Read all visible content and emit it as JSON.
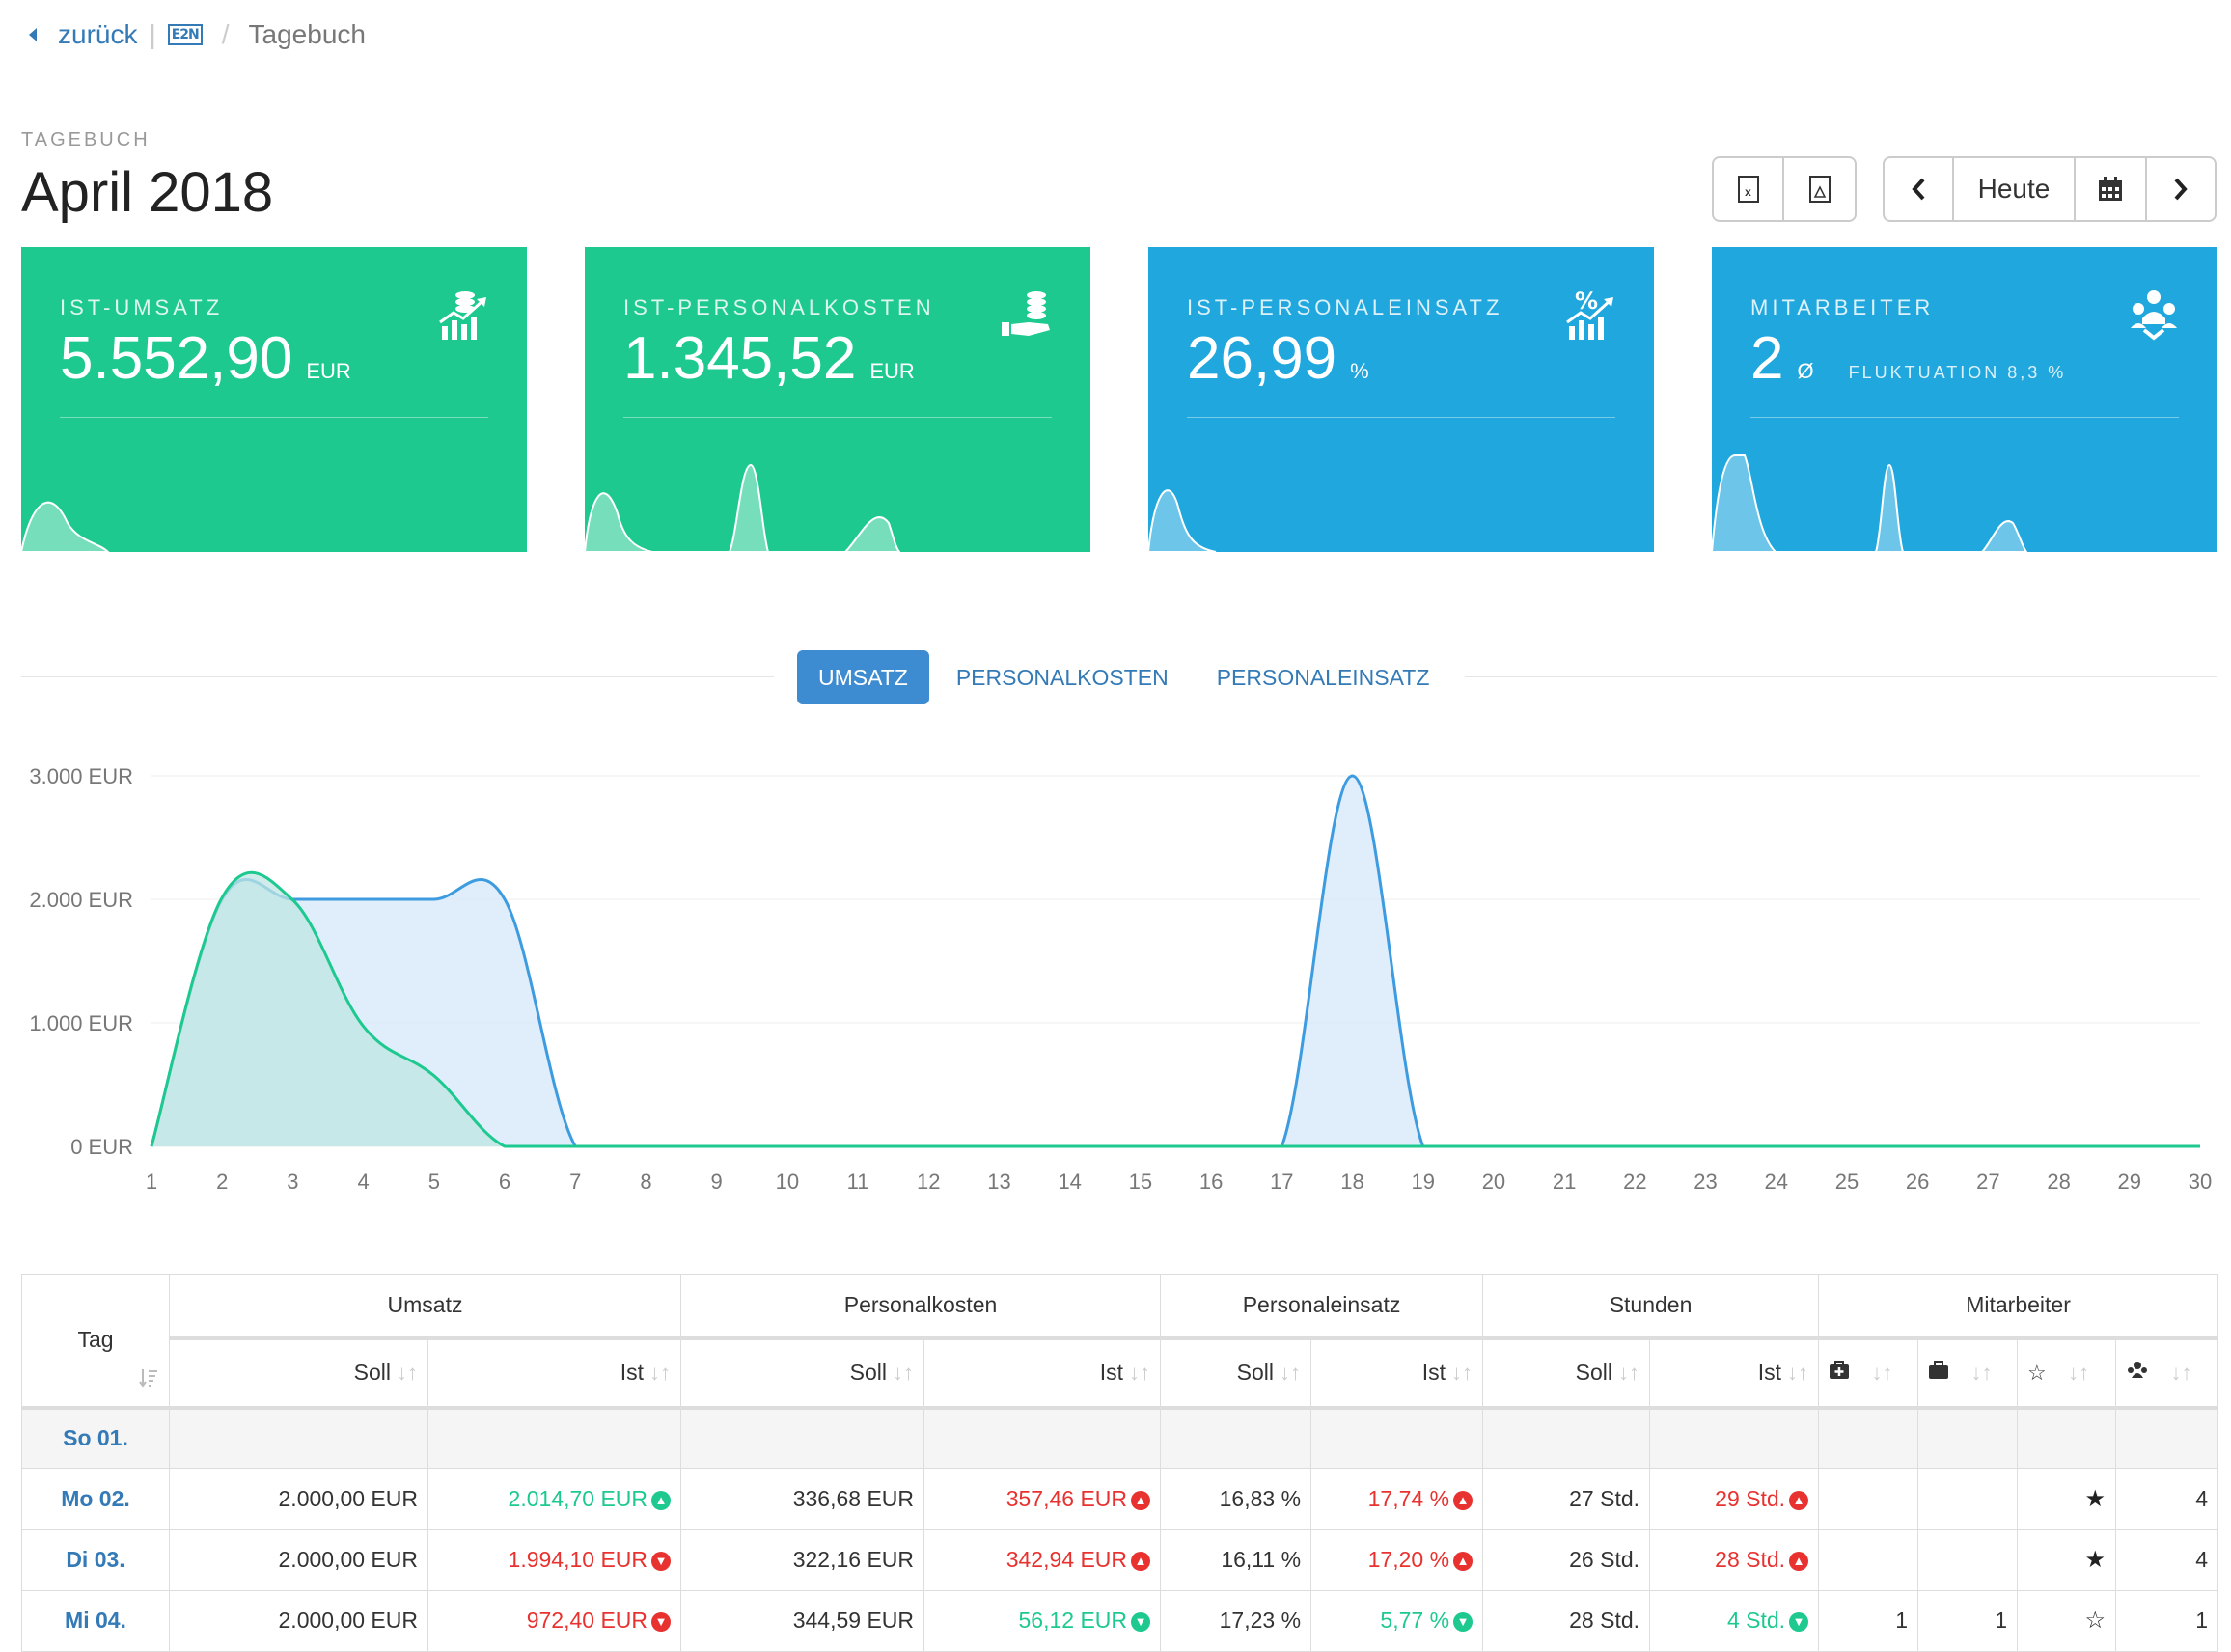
{
  "breadcrumb": {
    "back": "zurück",
    "logo": "E2N",
    "current": "Tagebuch"
  },
  "header": {
    "kicker": "TAGEBUCH",
    "title": "April 2018"
  },
  "toolbar": {
    "today": "Heute",
    "excel_label": "x",
    "pdf_label": "pdf"
  },
  "cards": [
    {
      "label": "IST-UMSATZ",
      "value": "5.552,90",
      "unit": "EUR",
      "sub": "",
      "color": "#1dc98f",
      "icon": "revenue-chart-icon"
    },
    {
      "label": "IST-PERSONALKOSTEN",
      "value": "1.345,52",
      "unit": "EUR",
      "sub": "",
      "color": "#1dc98f",
      "icon": "coins-hand-icon"
    },
    {
      "label": "IST-PERSONALEINSATZ",
      "value": "26,99",
      "unit": "%",
      "sub": "",
      "color": "#1fa7de",
      "icon": "percent-chart-icon"
    },
    {
      "label": "MITARBEITER",
      "value": "2",
      "unit": "Ø",
      "sub": "FLUKTUATION 8,3 %",
      "color": "#1fa7de",
      "icon": "team-icon"
    }
  ],
  "tabs": [
    {
      "label": "UMSATZ",
      "active": true
    },
    {
      "label": "PERSONALKOSTEN",
      "active": false
    },
    {
      "label": "PERSONALEINSATZ",
      "active": false
    }
  ],
  "chart_data": {
    "type": "area",
    "x": [
      1,
      2,
      3,
      4,
      5,
      6,
      7,
      8,
      9,
      10,
      11,
      12,
      13,
      14,
      15,
      16,
      17,
      18,
      19,
      20,
      21,
      22,
      23,
      24,
      25,
      26,
      27,
      28,
      29,
      30
    ],
    "y_tick_labels": [
      "0 EUR",
      "1.000 EUR",
      "2.000 EUR",
      "3.000 EUR"
    ],
    "ylim": [
      0,
      3000
    ],
    "series": [
      {
        "key": "soll",
        "color": "#3d9be0",
        "fill": "#d6e8fb",
        "values": [
          0,
          2000,
          2000,
          2000,
          2000,
          2000,
          0,
          0,
          0,
          0,
          0,
          0,
          0,
          0,
          0,
          0,
          0,
          3000,
          0,
          0,
          0,
          0,
          0,
          0,
          0,
          0,
          0,
          0,
          0,
          0
        ]
      },
      {
        "key": "ist",
        "color": "#1dc98f",
        "fill": "#bfe6e3",
        "values": [
          0,
          2015,
          1994,
          972,
          572,
          0,
          0,
          0,
          0,
          0,
          0,
          0,
          0,
          0,
          0,
          0,
          0,
          0,
          0,
          0,
          0,
          0,
          0,
          0,
          0,
          0,
          0,
          0,
          0,
          0
        ]
      }
    ]
  },
  "table": {
    "groups": [
      "Tag",
      "Umsatz",
      "Personalkosten",
      "Personaleinsatz",
      "Stunden",
      "Mitarbeiter"
    ],
    "sub": [
      "Soll",
      "Ist"
    ],
    "mitarbeiter_icons": [
      "medkit-icon",
      "briefcase-icon",
      "star-outline-icon",
      "group-icon"
    ],
    "rows": [
      {
        "day": "So 01.",
        "cells": [
          "",
          "",
          "",
          "",
          "",
          "",
          "",
          "",
          "",
          "",
          "",
          ""
        ]
      },
      {
        "day": "Mo 02.",
        "cells": [
          "2.000,00 EUR",
          "2.014,70 EUR",
          "336,68 EUR",
          "357,46 EUR",
          "16,83 %",
          "17,74 %",
          "27 Std.",
          "29 Std.",
          "",
          "",
          "★",
          "4"
        ]
      },
      {
        "day": "Di 03.",
        "cells": [
          "2.000,00 EUR",
          "1.994,10 EUR",
          "322,16 EUR",
          "342,94 EUR",
          "16,11 %",
          "17,20 %",
          "26 Std.",
          "28 Std.",
          "",
          "",
          "★",
          "4"
        ]
      },
      {
        "day": "Mi 04.",
        "cells": [
          "2.000,00 EUR",
          "972,40 EUR",
          "344,59 EUR",
          "56,12 EUR",
          "17,23 %",
          "5,77 %",
          "28 Std.",
          "4 Std.",
          "1",
          "1",
          "☆",
          "1"
        ]
      }
    ],
    "row_status": [
      [],
      [
        "up-green",
        "up-red",
        "up-red",
        "up-red"
      ],
      [
        "down-red",
        "up-red",
        "up-red",
        "up-red"
      ],
      [
        "down-red",
        "down-green",
        "down-green",
        "down-green"
      ]
    ]
  }
}
